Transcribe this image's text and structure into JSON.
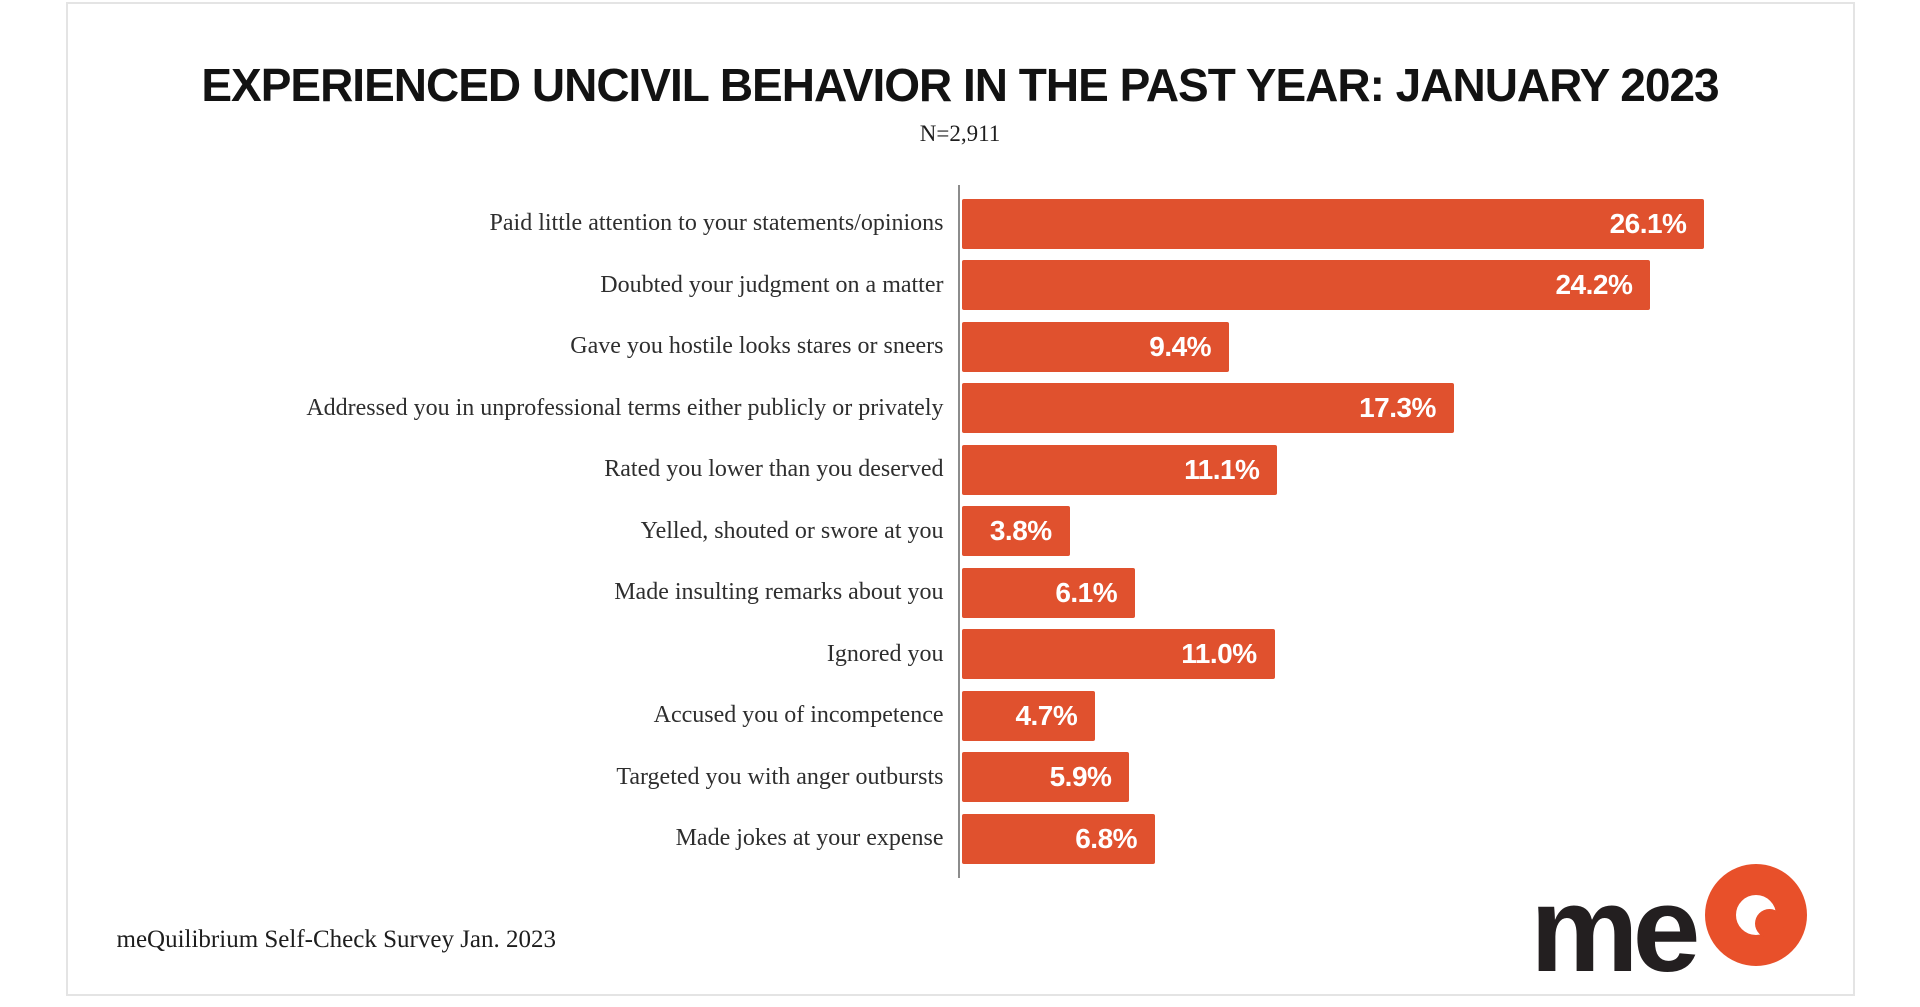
{
  "header": {
    "title": "EXPERIENCED UNCIVIL BEHAVIOR IN THE PAST YEAR: JANUARY 2023",
    "sample_size": "N=2,911"
  },
  "chart_data": {
    "type": "bar",
    "orientation": "horizontal",
    "title": "EXPERIENCED UNCIVIL BEHAVIOR IN THE PAST YEAR: JANUARY 2023",
    "subtitle": "N=2,911",
    "categories": [
      "Paid little attention to your statements/opinions",
      "Doubted your judgment on a matter",
      "Gave you hostile looks stares or sneers",
      "Addressed you in unprofessional terms either publicly or privately",
      "Rated you lower than you deserved",
      "Yelled, shouted or swore at you",
      "Made insulting  remarks about you",
      "Ignored you",
      "Accused you of incompetence",
      "Targeted you with anger outbursts",
      "Made jokes at your expense"
    ],
    "values": [
      26.1,
      24.2,
      9.4,
      17.3,
      11.1,
      3.8,
      6.1,
      11.0,
      4.7,
      5.9,
      6.8
    ],
    "value_labels": [
      "26.1%",
      "24.2%",
      "9.4%",
      "17.3%",
      "11.1%",
      "3.8%",
      "6.1%",
      "11.0%",
      "4.7%",
      "5.9%",
      "6.8%"
    ],
    "xlabel": "",
    "ylabel": "",
    "xlim": [
      0,
      31.3
    ],
    "grid": false,
    "legend": "none",
    "bar_color": "#E0512E",
    "value_label_color": "#FFFFFF",
    "axis_line_color": "#8C8C8C",
    "category_label_color": "#2E2E2E"
  },
  "footer": {
    "source": "meQuilibrium Self-Check Survey Jan. 2023"
  },
  "logo": {
    "wordmark": "me",
    "mark": "q-ring-with-dot",
    "wordmark_color": "#231F20",
    "accent_color": "#E8502A"
  }
}
